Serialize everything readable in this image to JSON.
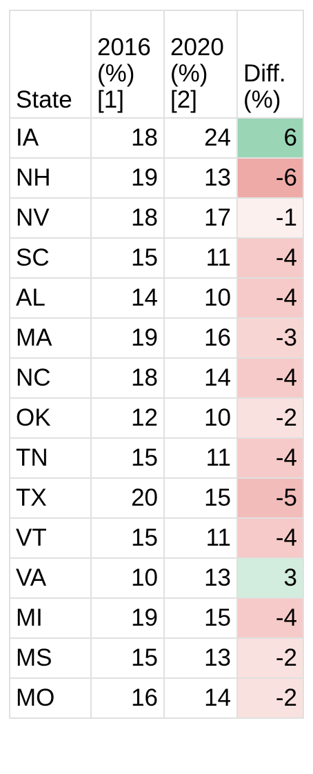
{
  "headers": {
    "state": "State",
    "y2016": "2016 (%) [1]",
    "y2020": "2020 (%) [2]",
    "diff": "Diff. (%)"
  },
  "colors": {
    "positive_strong": "#9ad5b5",
    "positive_light": "#d2ecdd",
    "negative_6": "#eeaaa7",
    "negative_5": "#f2bcba",
    "negative_4": "#f5cac8",
    "negative_3": "#f7d5d3",
    "negative_2": "#f9e1df",
    "negative_1": "#fcf0ef"
  },
  "rows": [
    {
      "state": "IA",
      "y2016": "18",
      "y2020": "24",
      "diff": "6",
      "color": "#9ad5b5"
    },
    {
      "state": "NH",
      "y2016": "19",
      "y2020": "13",
      "diff": "-6",
      "color": "#eeaaa7"
    },
    {
      "state": "NV",
      "y2016": "18",
      "y2020": "17",
      "diff": "-1",
      "color": "#fcf0ef"
    },
    {
      "state": "SC",
      "y2016": "15",
      "y2020": "11",
      "diff": "-4",
      "color": "#f5cac8"
    },
    {
      "state": "AL",
      "y2016": "14",
      "y2020": "10",
      "diff": "-4",
      "color": "#f5cac8"
    },
    {
      "state": "MA",
      "y2016": "19",
      "y2020": "16",
      "diff": "-3",
      "color": "#f7d5d3"
    },
    {
      "state": "NC",
      "y2016": "18",
      "y2020": "14",
      "diff": "-4",
      "color": "#f5cac8"
    },
    {
      "state": "OK",
      "y2016": "12",
      "y2020": "10",
      "diff": "-2",
      "color": "#f9e1df"
    },
    {
      "state": "TN",
      "y2016": "15",
      "y2020": "11",
      "diff": "-4",
      "color": "#f5cac8"
    },
    {
      "state": "TX",
      "y2016": "20",
      "y2020": "15",
      "diff": "-5",
      "color": "#f2bcba"
    },
    {
      "state": "VT",
      "y2016": "15",
      "y2020": "11",
      "diff": "-4",
      "color": "#f5cac8"
    },
    {
      "state": "VA",
      "y2016": "10",
      "y2020": "13",
      "diff": "3",
      "color": "#d2ecdd"
    },
    {
      "state": "MI",
      "y2016": "19",
      "y2020": "15",
      "diff": "-4",
      "color": "#f5cac8"
    },
    {
      "state": "MS",
      "y2016": "15",
      "y2020": "13",
      "diff": "-2",
      "color": "#f9e1df"
    },
    {
      "state": "MO",
      "y2016": "16",
      "y2020": "14",
      "diff": "-2",
      "color": "#f9e1df"
    }
  ]
}
